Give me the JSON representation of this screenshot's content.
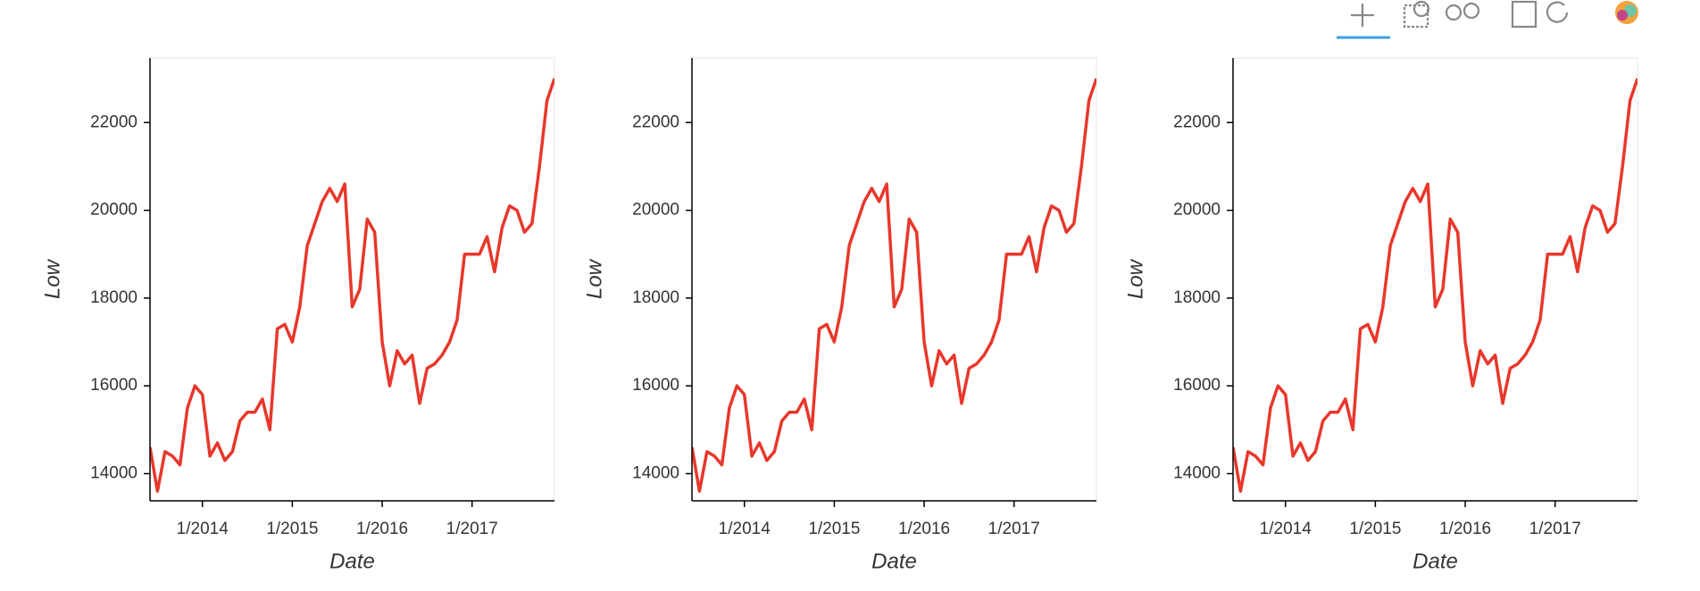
{
  "chart_data": [
    {
      "type": "line",
      "xlabel": "Date",
      "ylabel": "Low",
      "color": "#e8372b",
      "x": [
        "2013-06",
        "2013-07",
        "2013-08",
        "2013-09",
        "2013-10",
        "2013-11",
        "2013-12",
        "2014-01",
        "2014-02",
        "2014-03",
        "2014-04",
        "2014-05",
        "2014-06",
        "2014-07",
        "2014-08",
        "2014-09",
        "2014-10",
        "2014-11",
        "2014-12",
        "2015-01",
        "2015-02",
        "2015-03",
        "2015-04",
        "2015-05",
        "2015-06",
        "2015-07",
        "2015-08",
        "2015-09",
        "2015-10",
        "2015-11",
        "2015-12",
        "2016-01",
        "2016-02",
        "2016-03",
        "2016-04",
        "2016-05",
        "2016-06",
        "2016-07",
        "2016-08",
        "2016-09",
        "2016-10",
        "2016-11",
        "2016-12",
        "2017-01",
        "2017-02",
        "2017-03",
        "2017-04",
        "2017-05",
        "2017-06",
        "2017-07",
        "2017-08",
        "2017-09",
        "2017-10",
        "2017-11",
        "2017-12"
      ],
      "series": [
        {
          "name": "Low",
          "values": [
            14600,
            13600,
            14500,
            14400,
            14200,
            15500,
            16000,
            15800,
            14400,
            14700,
            14300,
            14500,
            15200,
            15400,
            15400,
            15700,
            15000,
            17300,
            17400,
            17000,
            17800,
            19200,
            19700,
            20200,
            20500,
            20200,
            20600,
            17800,
            18200,
            19800,
            19500,
            17000,
            16000,
            16800,
            16500,
            16700,
            15600,
            16400,
            16500,
            16700,
            17000,
            17500,
            19000,
            19000,
            19000,
            19400,
            18600,
            19600,
            20100,
            20000,
            19500,
            19700,
            21000,
            22500,
            23000
          ]
        }
      ],
      "xlim": [
        "2013-06",
        "2017-12"
      ],
      "ylim": [
        13380,
        23470
      ],
      "xticks": [
        {
          "value": "2014-01",
          "label": "1/2014"
        },
        {
          "value": "2015-01",
          "label": "1/2015"
        },
        {
          "value": "2016-01",
          "label": "1/2016"
        },
        {
          "value": "2017-01",
          "label": "1/2017"
        }
      ],
      "yticks": [
        14000,
        16000,
        18000,
        20000,
        22000
      ]
    },
    {
      "type": "line",
      "xlabel": "Date",
      "ylabel": "Low",
      "color": "#e8372b",
      "x": [
        "2013-06",
        "2013-07",
        "2013-08",
        "2013-09",
        "2013-10",
        "2013-11",
        "2013-12",
        "2014-01",
        "2014-02",
        "2014-03",
        "2014-04",
        "2014-05",
        "2014-06",
        "2014-07",
        "2014-08",
        "2014-09",
        "2014-10",
        "2014-11",
        "2014-12",
        "2015-01",
        "2015-02",
        "2015-03",
        "2015-04",
        "2015-05",
        "2015-06",
        "2015-07",
        "2015-08",
        "2015-09",
        "2015-10",
        "2015-11",
        "2015-12",
        "2016-01",
        "2016-02",
        "2016-03",
        "2016-04",
        "2016-05",
        "2016-06",
        "2016-07",
        "2016-08",
        "2016-09",
        "2016-10",
        "2016-11",
        "2016-12",
        "2017-01",
        "2017-02",
        "2017-03",
        "2017-04",
        "2017-05",
        "2017-06",
        "2017-07",
        "2017-08",
        "2017-09",
        "2017-10",
        "2017-11",
        "2017-12"
      ],
      "series": [
        {
          "name": "Low",
          "values": [
            14600,
            13600,
            14500,
            14400,
            14200,
            15500,
            16000,
            15800,
            14400,
            14700,
            14300,
            14500,
            15200,
            15400,
            15400,
            15700,
            15000,
            17300,
            17400,
            17000,
            17800,
            19200,
            19700,
            20200,
            20500,
            20200,
            20600,
            17800,
            18200,
            19800,
            19500,
            17000,
            16000,
            16800,
            16500,
            16700,
            15600,
            16400,
            16500,
            16700,
            17000,
            17500,
            19000,
            19000,
            19000,
            19400,
            18600,
            19600,
            20100,
            20000,
            19500,
            19700,
            21000,
            22500,
            23000
          ]
        }
      ],
      "xlim": [
        "2013-06",
        "2017-12"
      ],
      "ylim": [
        13380,
        23470
      ],
      "xticks": [
        {
          "value": "2014-01",
          "label": "1/2014"
        },
        {
          "value": "2015-01",
          "label": "1/2015"
        },
        {
          "value": "2016-01",
          "label": "1/2016"
        },
        {
          "value": "2017-01",
          "label": "1/2017"
        }
      ],
      "yticks": [
        14000,
        16000,
        18000,
        20000,
        22000
      ]
    },
    {
      "type": "line",
      "xlabel": "Date",
      "ylabel": "Low",
      "color": "#e8372b",
      "x": [
        "2013-06",
        "2013-07",
        "2013-08",
        "2013-09",
        "2013-10",
        "2013-11",
        "2013-12",
        "2014-01",
        "2014-02",
        "2014-03",
        "2014-04",
        "2014-05",
        "2014-06",
        "2014-07",
        "2014-08",
        "2014-09",
        "2014-10",
        "2014-11",
        "2014-12",
        "2015-01",
        "2015-02",
        "2015-03",
        "2015-04",
        "2015-05",
        "2015-06",
        "2015-07",
        "2015-08",
        "2015-09",
        "2015-10",
        "2015-11",
        "2015-12",
        "2016-01",
        "2016-02",
        "2016-03",
        "2016-04",
        "2016-05",
        "2016-06",
        "2016-07",
        "2016-08",
        "2016-09",
        "2016-10",
        "2016-11",
        "2016-12",
        "2017-01",
        "2017-02",
        "2017-03",
        "2017-04",
        "2017-05",
        "2017-06",
        "2017-07",
        "2017-08",
        "2017-09",
        "2017-10",
        "2017-11",
        "2017-12"
      ],
      "series": [
        {
          "name": "Low",
          "values": [
            14600,
            13600,
            14500,
            14400,
            14200,
            15500,
            16000,
            15800,
            14400,
            14700,
            14300,
            14500,
            15200,
            15400,
            15400,
            15700,
            15000,
            17300,
            17400,
            17000,
            17800,
            19200,
            19700,
            20200,
            20500,
            20200,
            20600,
            17800,
            18200,
            19800,
            19500,
            17000,
            16000,
            16800,
            16500,
            16700,
            15600,
            16400,
            16500,
            16700,
            17000,
            17500,
            19000,
            19000,
            19000,
            19400,
            18600,
            19600,
            20100,
            20000,
            19500,
            19700,
            21000,
            22500,
            23000
          ]
        }
      ],
      "xlim": [
        "2013-06",
        "2017-12"
      ],
      "ylim": [
        13380,
        23470
      ],
      "xticks": [
        {
          "value": "2014-01",
          "label": "1/2014"
        },
        {
          "value": "2015-01",
          "label": "1/2015"
        },
        {
          "value": "2016-01",
          "label": "1/2016"
        },
        {
          "value": "2017-01",
          "label": "1/2017"
        }
      ],
      "yticks": [
        14000,
        16000,
        18000,
        20000,
        22000
      ]
    }
  ]
}
